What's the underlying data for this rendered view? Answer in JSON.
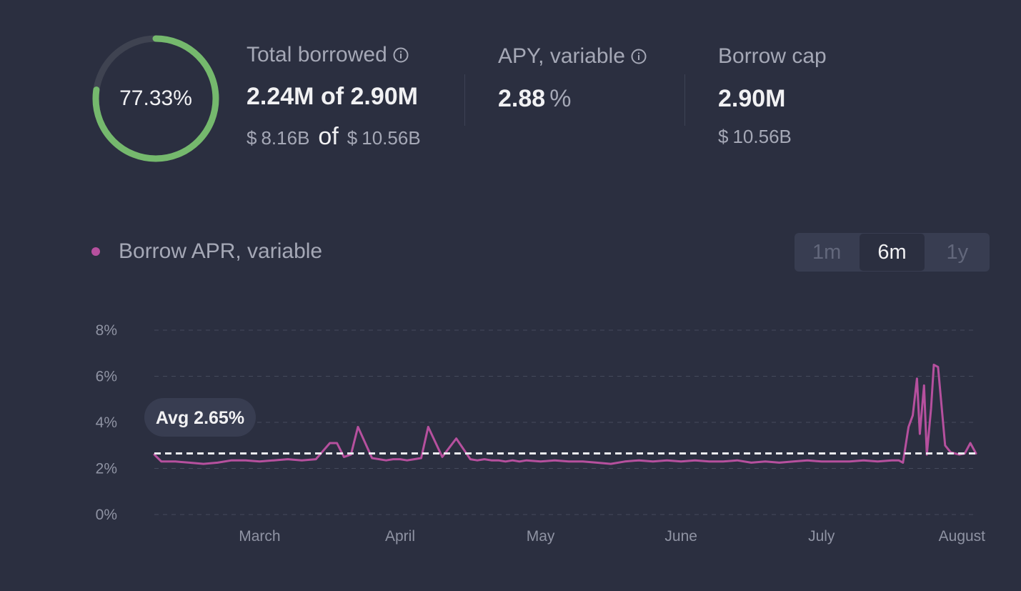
{
  "summary": {
    "utilization_pct": "77.33%",
    "utilization_value": 0.7733,
    "ring_color": "#75b96d",
    "ring_track_color": "#3f4351",
    "total_borrowed": {
      "label": "Total borrowed",
      "value": "2.24M of 2.90M",
      "usd_borrowed": "8.16B",
      "usd_cap": "10.56B",
      "currency_symbol": "$",
      "of_word": "of",
      "icon": "info-icon"
    },
    "apy_variable": {
      "label": "APY, variable",
      "value": "2.88",
      "unit": "%",
      "icon": "info-icon"
    },
    "borrow_cap": {
      "label": "Borrow cap",
      "value": "2.90M",
      "currency_symbol": "$",
      "usd": "10.56B"
    }
  },
  "chart_header": {
    "legend_label": "Borrow APR, variable",
    "legend_color": "#b6509e",
    "ranges": [
      "1m",
      "6m",
      "1y"
    ],
    "active_range": "6m"
  },
  "chart_data": {
    "type": "line",
    "title": "Borrow APR, variable",
    "xlabel": "",
    "ylabel": "",
    "y_ticks": [
      "0%",
      "2%",
      "4%",
      "6%",
      "8%"
    ],
    "ylim": [
      0,
      8
    ],
    "x_ticks": [
      "March",
      "April",
      "May",
      "June",
      "July",
      "August"
    ],
    "x_tick_positions": [
      0.5,
      1.5,
      2.5,
      3.5,
      4.5,
      5.5
    ],
    "xlim": [
      -0.25,
      5.6
    ],
    "average": {
      "label": "Avg 2.65%",
      "value": 2.65
    },
    "series": [
      {
        "name": "Borrow APR, variable",
        "color": "#b6509e",
        "x": [
          -0.25,
          -0.2,
          -0.1,
          0.0,
          0.1,
          0.2,
          0.3,
          0.4,
          0.5,
          0.6,
          0.7,
          0.8,
          0.9,
          1.0,
          1.05,
          1.1,
          1.15,
          1.2,
          1.3,
          1.4,
          1.45,
          1.5,
          1.55,
          1.6,
          1.65,
          1.7,
          1.8,
          1.9,
          2.0,
          2.05,
          2.1,
          2.15,
          2.2,
          2.25,
          2.3,
          2.35,
          2.4,
          2.5,
          2.6,
          2.7,
          2.8,
          2.9,
          3.0,
          3.1,
          3.2,
          3.3,
          3.4,
          3.5,
          3.6,
          3.7,
          3.8,
          3.9,
          4.0,
          4.1,
          4.2,
          4.3,
          4.4,
          4.5,
          4.6,
          4.7,
          4.8,
          4.9,
          5.0,
          5.05,
          5.08,
          5.12,
          5.15,
          5.18,
          5.2,
          5.23,
          5.25,
          5.28,
          5.3,
          5.33,
          5.38,
          5.42,
          5.45,
          5.48,
          5.52,
          5.56,
          5.6
        ],
        "values": [
          2.6,
          2.3,
          2.3,
          2.25,
          2.2,
          2.25,
          2.35,
          2.35,
          2.3,
          2.35,
          2.4,
          2.35,
          2.4,
          3.1,
          3.1,
          2.5,
          2.6,
          3.8,
          2.45,
          2.35,
          2.4,
          2.4,
          2.35,
          2.4,
          2.45,
          3.8,
          2.5,
          3.3,
          2.4,
          2.35,
          2.4,
          2.35,
          2.35,
          2.3,
          2.35,
          2.3,
          2.35,
          2.3,
          2.35,
          2.3,
          2.3,
          2.25,
          2.2,
          2.3,
          2.35,
          2.3,
          2.35,
          2.3,
          2.35,
          2.3,
          2.3,
          2.35,
          2.25,
          2.3,
          2.25,
          2.3,
          2.35,
          2.3,
          2.3,
          2.3,
          2.35,
          2.3,
          2.35,
          2.35,
          2.25,
          3.8,
          4.3,
          5.9,
          3.5,
          5.6,
          2.6,
          4.6,
          6.5,
          6.4,
          3.0,
          2.7,
          2.65,
          2.6,
          2.65,
          3.1,
          2.65
        ]
      }
    ]
  }
}
